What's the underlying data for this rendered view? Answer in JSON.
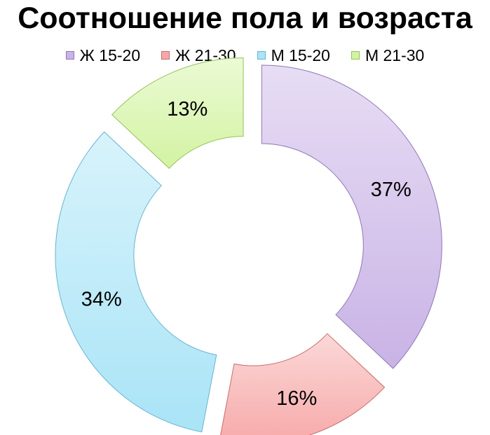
{
  "chart_data": {
    "type": "pie",
    "variant": "donut-exploded",
    "title": "Соотношение пола и возраста",
    "legend_position": "top",
    "series": [
      {
        "name": "",
        "slices": [
          {
            "label": "Ж 15-20",
            "value": 37,
            "display": "37%",
            "color": "#c9b3e6",
            "stroke": "#8f77b8"
          },
          {
            "label": "Ж 21-30",
            "value": 16,
            "display": "16%",
            "color": "#f7a9a9",
            "stroke": "#c76c6c"
          },
          {
            "label": "М 15-20",
            "value": 34,
            "display": "34%",
            "color": "#a9e4f7",
            "stroke": "#6ab3d1"
          },
          {
            "label": "М 21-30",
            "value": 13,
            "display": "13%",
            "color": "#d3f3a2",
            "stroke": "#94c25c"
          }
        ]
      }
    ]
  }
}
